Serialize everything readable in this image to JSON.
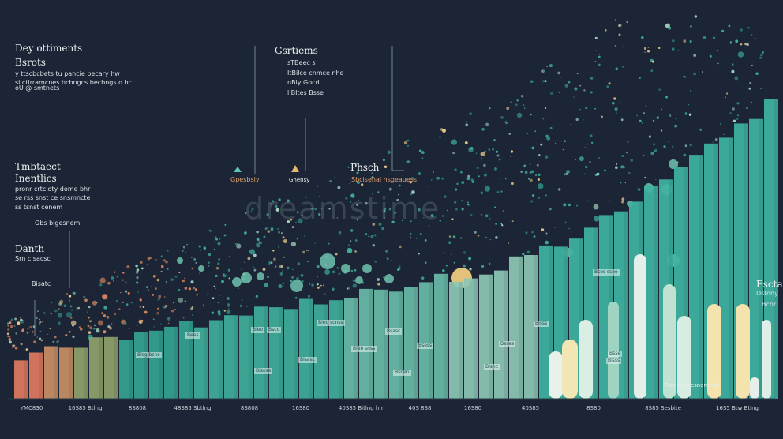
{
  "left_block": {
    "title": "Dey ottiments",
    "subtitle": "Bsrots",
    "lines": [
      "y ttscbcbets tu pancie becary hw",
      "si ctlrramcnes bcbngcs becbngs o bc",
      "oU @ smtnets"
    ]
  },
  "center_block": {
    "title": "Gsrtiems",
    "lines": [
      "sTBeec s",
      "ItBilce cnmce nhe",
      "nBly Gocd",
      "lIBItes Bsse"
    ]
  },
  "mid_left_block": {
    "title": "Tmbtaect",
    "subtitle": "Inentlics",
    "lines": [
      "pronr crtcloty dome bhr",
      "se rss snst ce snsmncte",
      "ss tsnst cenem"
    ],
    "note": "Obs bigesnem"
  },
  "small_block": {
    "title": "Danth",
    "lines": [
      "Srn c sacsc",
      "Bisatc"
    ]
  },
  "markers": [
    "Gpesbsly",
    "Gnensy"
  ],
  "phase_block": {
    "title": "Phsch",
    "subtitle": "Sbcisenal hsgeauess"
  },
  "right_block": {
    "title": "Esctals",
    "lines": [
      "Dsfony",
      "Bcnr"
    ]
  },
  "watermark": "dreamstime",
  "legend_note": "Tsenes bresnemcod",
  "bar_labels": [
    "Bees",
    "Blsg bsns",
    "Bieo",
    "Bsco",
    "Bieo scnss",
    "Bsasc",
    "Bisasc",
    "Bleo snss",
    "Bsess",
    "Bisose",
    "Bsnen",
    "Bsses",
    "Blsnc",
    "Bisss",
    "Bsse",
    "Blsss",
    "Bsos sseo"
  ],
  "axis_labels": [
    "YMC830",
    "16S85 Btlng",
    "8S808",
    "48S85 Sbtlng",
    "8S808",
    "16S80",
    "40S85 Bitlng hm",
    "40S 8S8",
    "16S80",
    "40S85",
    "8S80",
    "8S85 Sesbite",
    "16S5 Btw Btlng"
  ]
}
